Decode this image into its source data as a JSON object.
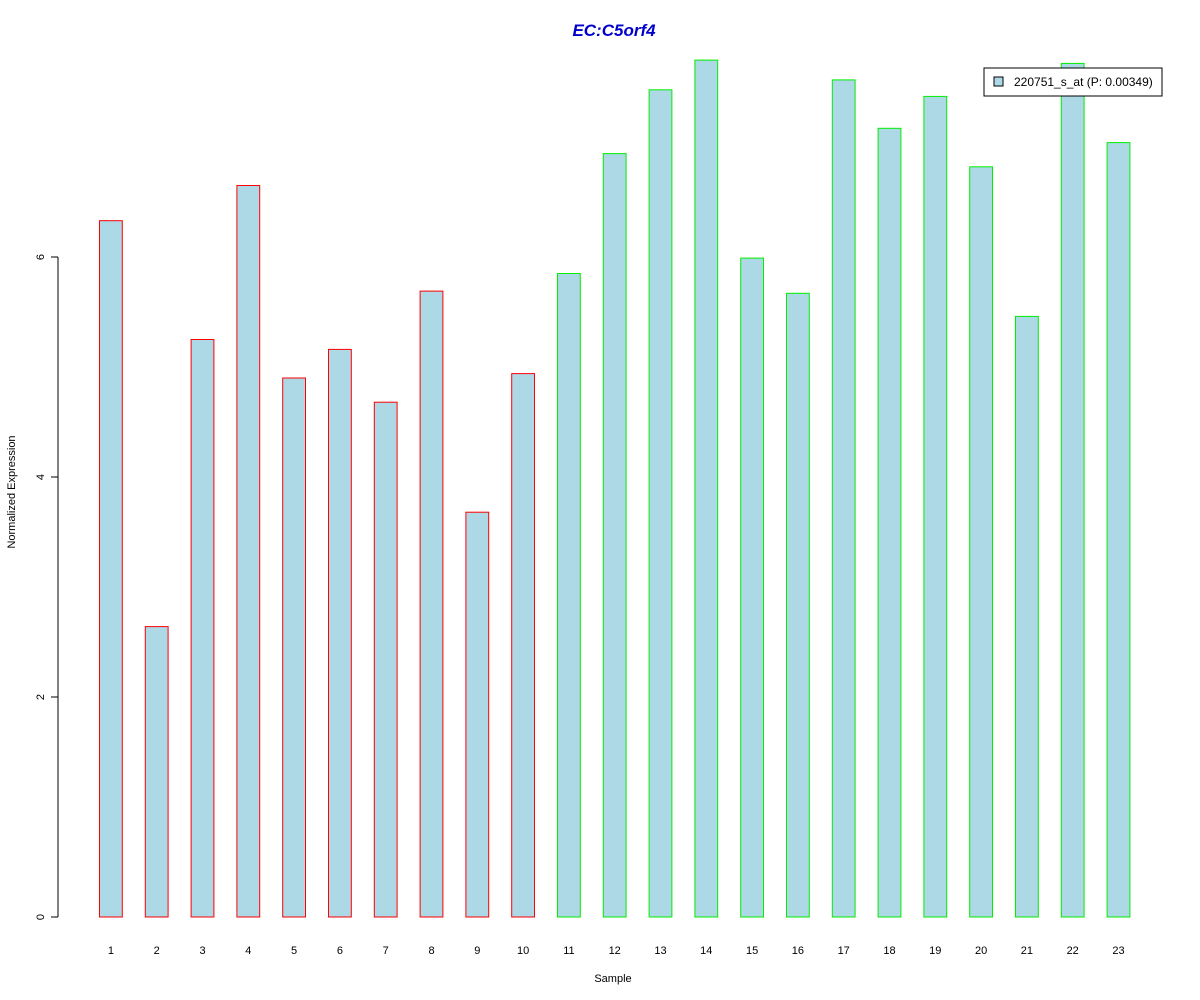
{
  "chart_data": {
    "type": "bar",
    "title": "EC:C5orf4",
    "xlabel": "Sample",
    "ylabel": "Normalized Expression",
    "categories": [
      "1",
      "2",
      "3",
      "4",
      "5",
      "6",
      "7",
      "8",
      "9",
      "10",
      "11",
      "12",
      "13",
      "14",
      "15",
      "16",
      "17",
      "18",
      "19",
      "20",
      "21",
      "22",
      "23"
    ],
    "series": [
      {
        "name": "220751_s_at (P: 0.00349)",
        "values": [
          6.33,
          2.64,
          5.25,
          6.65,
          4.9,
          5.16,
          4.68,
          5.69,
          3.68,
          4.94,
          5.85,
          6.94,
          7.52,
          7.79,
          5.99,
          5.67,
          7.61,
          7.17,
          7.46,
          6.82,
          5.46,
          7.76,
          7.04
        ]
      }
    ],
    "group_index": [
      0,
      0,
      0,
      0,
      0,
      0,
      0,
      0,
      0,
      0,
      1,
      1,
      1,
      1,
      1,
      1,
      1,
      1,
      1,
      1,
      1,
      1,
      1
    ],
    "y_ticks": [
      0,
      2,
      4,
      6
    ],
    "ylim": [
      0,
      7.8
    ],
    "grid": false,
    "legend_position": "top-right",
    "colors": {
      "title": "#0000cc",
      "bar_fill": "#add8e6",
      "group_borders": [
        "#ff0000",
        "#00ee00"
      ],
      "axis": "#000000"
    }
  }
}
